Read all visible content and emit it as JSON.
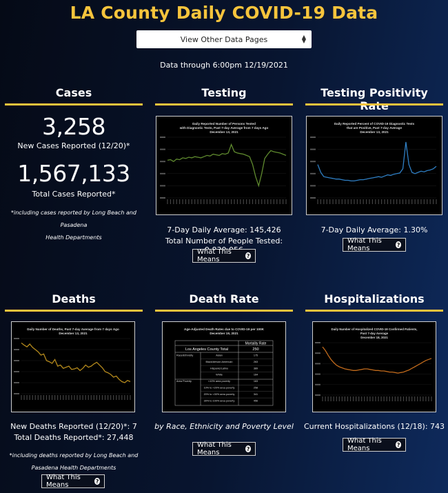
{
  "page": {
    "title": "LA County Daily COVID-19 Data",
    "select_value": "View Other Data Pages",
    "data_through": "Data through 6:00pm 12/19/2021"
  },
  "cases": {
    "title": "Cases",
    "new_cases": "3,258",
    "new_cases_label": "New Cases Reported (12/20)*",
    "total_cases": "1,567,133",
    "total_cases_label": "Total Cases Reported*",
    "note_line1": "*including cases reported by Long Beach and Pasadena",
    "note_line2": "Health Departments"
  },
  "testing": {
    "title": "Testing",
    "chart_title_1": "Daily Reported Number of Persons Tested",
    "chart_title_2": "with Diagnostic Tests, Past 7-day Average from 7 days Ago",
    "chart_title_3": "December 13, 2021",
    "avg_line": "7-Day Daily Average: 145,426",
    "total_line": "Total Number of People Tested: 9,830,056",
    "button": "What This Means"
  },
  "positivity": {
    "title": "Testing Positivity Rate",
    "chart_title_1": "Daily Reported Percent of COVID-19 Diagnostic Tests",
    "chart_title_2": "that are Positive, Past 7-day Average",
    "chart_title_3": "December 13, 2021",
    "avg_line": "7-Day Daily Average: 1.30%",
    "button": "What This Means"
  },
  "deaths": {
    "title": "Deaths",
    "chart_title_1": "Daily Number of Deaths, Past 7-day Average from 7 days Ago",
    "chart_title_2": "December 13, 2021",
    "new_line": "New Deaths Reported (12/20)*: 7",
    "total_line": "Total Deaths Reported*: 27,448",
    "note_line1": "*including deaths reported by Long Beach and",
    "note_line2": "Pasadena Health Departments",
    "button": "What This Means"
  },
  "death_rate": {
    "title": "Death Rate",
    "chart_title_1": "Age-Adjusted Death Rates due to COVID-19 per 100K",
    "chart_title_2": "December 19, 2021",
    "table_header": "Mortality Rate",
    "county_label": "Los Angeles County Total",
    "county_value": "250",
    "rows": [
      {
        "group": "Race/Ethnicity",
        "label": "Asian",
        "value": "175"
      },
      {
        "group": "",
        "label": "Black/African American",
        "value": "263"
      },
      {
        "group": "",
        "label": "Hispanic/Latino",
        "value": "389"
      },
      {
        "group": "",
        "label": "White",
        "value": "164"
      },
      {
        "group": "Area Poverty",
        "label": "<10% area poverty",
        "value": "163"
      },
      {
        "group": "",
        "label": "10% to <20% area poverty",
        "value": "258"
      },
      {
        "group": "",
        "label": "20% to <30% area poverty",
        "value": "341"
      },
      {
        "group": "",
        "label": "30% to 100% area poverty",
        "value": "456"
      }
    ],
    "caption": "by Race, Ethnicity and Poverty Level",
    "button": "What This Means"
  },
  "hospital": {
    "title": "Hospitalizations",
    "chart_title_1": "Daily Number of Hospitalized COVID-19 Confirmed Patients,",
    "chart_title_2": "Past 7-day Average",
    "chart_title_3": "December 18, 2021",
    "current_line": "Current Hospitalizations (12/18): 743",
    "button": "What This Means"
  },
  "colors": {
    "accent": "#f7c43c",
    "testing_line": "#5f8a2e",
    "positivity_line": "#2f7fc4",
    "deaths_line": "#b58a1c",
    "hospital_line": "#c06a1c"
  },
  "icons": {
    "select_caret": "up-down-caret-icon",
    "info": "question-circle-icon"
  },
  "chart_data": [
    {
      "type": "line",
      "title": "Daily Reported Number of Persons Tested with Diagnostic Tests, Past 7-day Average from 7 days Ago",
      "series": [
        {
          "name": "",
          "values": [
            0.62,
            0.63,
            0.6,
            0.64,
            0.63,
            0.66,
            0.65,
            0.67,
            0.66,
            0.68,
            0.67,
            0.66,
            0.68,
            0.7,
            0.69,
            0.72,
            0.71,
            0.7,
            0.73,
            0.72,
            0.74,
            0.88,
            0.76,
            0.74,
            0.73,
            0.72,
            0.7,
            0.68,
            0.55,
            0.35,
            0.2,
            0.4,
            0.65,
            0.72,
            0.78,
            0.76,
            0.75,
            0.74,
            0.72,
            0.7
          ]
        }
      ]
    },
    {
      "type": "line",
      "title": "Daily Reported Percent of COVID-19 Diagnostic Tests that are Positive, Past 7-day Average",
      "series": [
        {
          "name": "",
          "values": [
            0.55,
            0.42,
            0.35,
            0.34,
            0.33,
            0.32,
            0.31,
            0.31,
            0.3,
            0.29,
            0.29,
            0.28,
            0.28,
            0.29,
            0.3,
            0.3,
            0.31,
            0.32,
            0.33,
            0.34,
            0.35,
            0.34,
            0.36,
            0.38,
            0.37,
            0.39,
            0.4,
            0.41,
            0.48,
            0.92,
            0.55,
            0.42,
            0.4,
            0.42,
            0.44,
            0.43,
            0.45,
            0.46,
            0.48,
            0.52
          ]
        }
      ]
    },
    {
      "type": "line",
      "title": "Daily Number of Deaths, Past 7-day Average from 7 days Ago",
      "series": [
        {
          "name": "",
          "values": [
            0.92,
            0.88,
            0.85,
            0.9,
            0.84,
            0.8,
            0.76,
            0.7,
            0.72,
            0.6,
            0.58,
            0.55,
            0.62,
            0.5,
            0.52,
            0.46,
            0.48,
            0.5,
            0.44,
            0.45,
            0.47,
            0.42,
            0.46,
            0.52,
            0.48,
            0.5,
            0.54,
            0.57,
            0.52,
            0.47,
            0.4,
            0.38,
            0.35,
            0.3,
            0.32,
            0.26,
            0.22,
            0.2,
            0.24,
            0.22
          ]
        }
      ]
    },
    {
      "type": "line",
      "title": "Daily Number of Hospitalized COVID-19 Confirmed Patients, Past 7-day Average",
      "series": [
        {
          "name": "",
          "values": [
            0.92,
            0.85,
            0.76,
            0.68,
            0.62,
            0.57,
            0.54,
            0.52,
            0.5,
            0.49,
            0.48,
            0.47,
            0.47,
            0.48,
            0.49,
            0.5,
            0.5,
            0.49,
            0.48,
            0.47,
            0.47,
            0.46,
            0.46,
            0.45,
            0.44,
            0.44,
            0.43,
            0.42,
            0.43,
            0.44,
            0.46,
            0.48,
            0.51,
            0.54,
            0.57,
            0.6,
            0.63,
            0.66,
            0.68,
            0.7
          ]
        }
      ]
    }
  ]
}
